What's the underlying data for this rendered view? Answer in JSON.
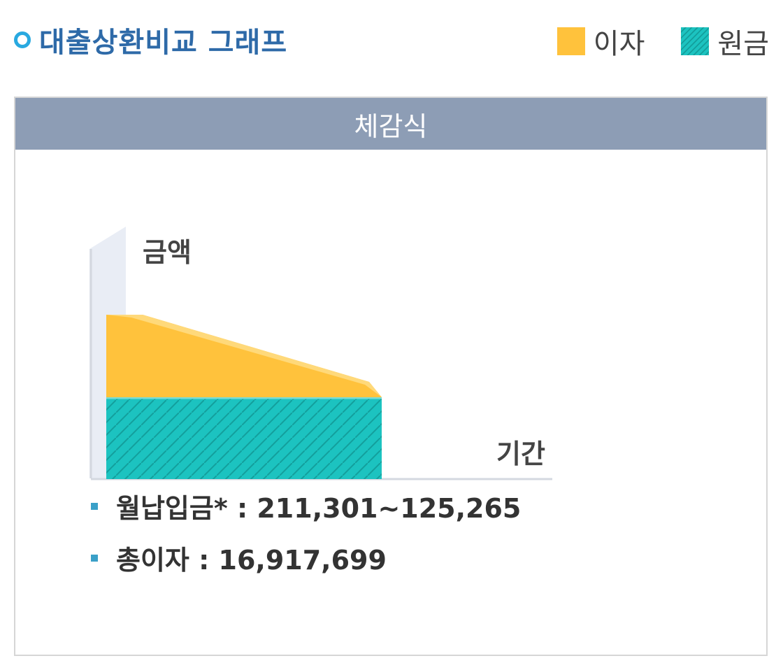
{
  "header": {
    "title": "대출상환비교 그래프",
    "legend": [
      {
        "label": "이자",
        "color": "#ffc23c"
      },
      {
        "label": "원금",
        "color": "#1cc3c0"
      }
    ]
  },
  "panel": {
    "heading": "체감식"
  },
  "chart_data": {
    "type": "area",
    "ylabel": "금액",
    "xlabel": "기간",
    "series": [
      {
        "name": "원금",
        "shape": "constant",
        "color": "#1cc3c0"
      },
      {
        "name": "이자",
        "shape": "decreasing",
        "color": "#ffc23c"
      }
    ],
    "grid": false
  },
  "info": {
    "monthly_payment_label": "월납입금* : 211,301~125,265",
    "total_interest_label": "총이자 : 16,917,699"
  }
}
